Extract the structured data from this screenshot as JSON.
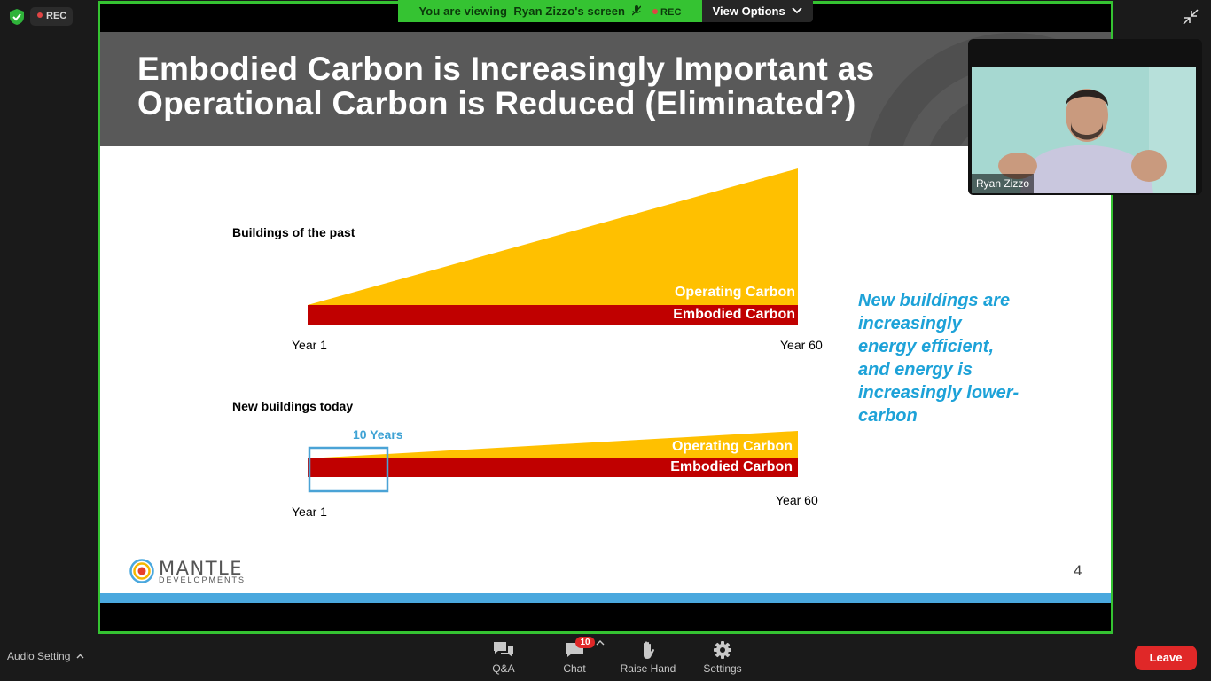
{
  "recording": {
    "label": "REC"
  },
  "banner": {
    "viewing_text": "You are viewing  Ryan Zizzo's screen",
    "rec_label": "REC",
    "view_options_label": "View Options"
  },
  "slide": {
    "title_line1": "Embodied Carbon is Increasingly Important as",
    "title_line2": "Operational Carbon is Reduced (Eliminated?)",
    "section1_label": "Buildings of the past",
    "section2_label": "New buildings today",
    "operating_carbon": "Operating Carbon",
    "embodied_carbon": "Embodied Carbon",
    "year_start": "Year 1",
    "year_end": "Year 60",
    "ten_years": "10 Years",
    "side_note_lines": [
      "New buildings are",
      "increasingly",
      "energy efficient,",
      "and energy is",
      "increasingly lower-",
      "carbon"
    ],
    "page_number": "4",
    "logo_name": "MANTLE",
    "logo_sub": "DEVELOPMENTS",
    "colors": {
      "operating": "#FFC000",
      "embodied": "#C00000",
      "accent_blue": "#1DA2D8",
      "header": "#595959"
    }
  },
  "video": {
    "participant_name": "Ryan Zizzo"
  },
  "toolbar": {
    "audio_setting": "Audio Setting",
    "qa": "Q&A",
    "chat": "Chat",
    "chat_badge": "10",
    "raise_hand": "Raise Hand",
    "settings": "Settings",
    "leave": "Leave"
  },
  "icons": [
    "shield-check-icon",
    "mic-off-icon",
    "chevron-down-icon",
    "collapse-icon",
    "qa-icon",
    "chat-icon",
    "hand-icon",
    "gear-icon",
    "caret-up-icon"
  ],
  "theme": {
    "share_border": "#35C332",
    "leave_red": "#E02828"
  }
}
